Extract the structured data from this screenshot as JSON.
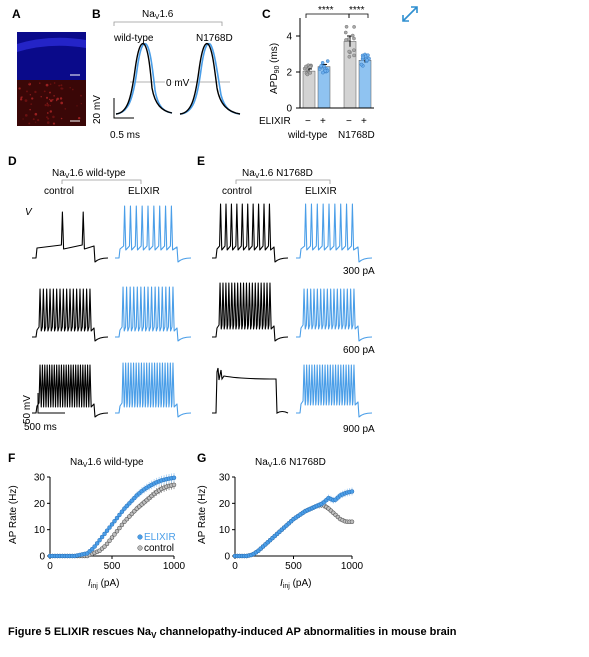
{
  "colors": {
    "elixir": "#4a9ee8",
    "control": "#000000",
    "gray_bar": "#d3d3d3",
    "elixir_bar": "#8fc3f1",
    "dapi": "#1a1acc",
    "red": "#7a1515",
    "expand_icon": "#2f8fd0"
  },
  "icons": {
    "expand": "expand-arrows-icon"
  },
  "panel_letters": {
    "a": "A",
    "b": "B",
    "c": "C",
    "d": "D",
    "e": "E",
    "f": "F",
    "g": "G"
  },
  "panel_b": {
    "title_main": "Na",
    "title_sub": "V",
    "title_tail": "1.6",
    "label_wt": "wild-type",
    "label_mut": "N1768D",
    "zero_label": "0 mV",
    "scale_v": "20 mV",
    "scale_t": "0.5 ms"
  },
  "panel_c": {
    "ylabel_main": "APD",
    "ylabel_sub": "90",
    "ylabel_tail": " (ms)",
    "yticks": [
      "0",
      "2",
      "4"
    ],
    "sig1": "****",
    "sig2": "****",
    "elixir_label": "ELIXIR",
    "minus": "−",
    "plus": "+",
    "group_wt": "wild-type",
    "group_mut": "N1768D"
  },
  "panel_d": {
    "title_main": "Na",
    "title_sub": "V",
    "title_tail": "1.6 wild-type",
    "control": "control",
    "elixir": "ELIXIR",
    "v_label": "V",
    "scale_v": "50 mV",
    "scale_t": "500 ms"
  },
  "panel_e": {
    "title_main": "Na",
    "title_sub": "V",
    "title_tail": "1.6 N1768D",
    "control": "control",
    "elixir": "ELIXIR",
    "currents": [
      "300 pA",
      "600 pA",
      "900 pA"
    ]
  },
  "panel_f": {
    "title_main": "Na",
    "title_sub": "V",
    "title_tail": "1.6 wild-type",
    "ylabel": "AP Rate (Hz)",
    "xlabel_main": "I",
    "xlabel_sub": "inj",
    "xlabel_tail": " (pA)",
    "legend": [
      "ELIXIR",
      "control"
    ]
  },
  "panel_g": {
    "title_main": "Na",
    "title_sub": "V",
    "title_tail": "1.6 N1768D",
    "ylabel": "AP Rate (Hz)",
    "xlabel_main": "I",
    "xlabel_sub": "inj",
    "xlabel_tail": " (pA)"
  },
  "caption": {
    "prefix": "Figure 5  ELIXIR rescues Na",
    "sub": "V",
    "suffix": " channelopathy-induced AP abnormalities in mouse brain"
  },
  "chart_data": [
    {
      "panel": "C",
      "type": "bar",
      "categories": [
        "wild-type −",
        "wild-type +",
        "N1768D −",
        "N1768D +"
      ],
      "values": [
        2.05,
        2.3,
        3.7,
        2.65
      ],
      "ylabel": "APD90 (ms)",
      "ylim": [
        0,
        5
      ]
    },
    {
      "panel": "F",
      "type": "scatter",
      "title": "NaV1.6 wild-type",
      "xlabel": "Iinj (pA)",
      "ylabel": "AP Rate (Hz)",
      "xlim": [
        0,
        1000
      ],
      "ylim": [
        0,
        30
      ],
      "x": [
        0,
        100,
        200,
        300,
        350,
        400,
        450,
        500,
        550,
        600,
        650,
        700,
        750,
        800,
        850,
        900,
        950,
        1000
      ],
      "series": [
        {
          "name": "ELIXIR",
          "values": [
            0,
            0,
            0,
            1,
            3,
            6,
            9,
            12,
            15,
            18,
            20.5,
            23,
            25,
            26.5,
            27.8,
            28.7,
            29.3,
            29.7
          ]
        },
        {
          "name": "control",
          "values": [
            0,
            0,
            0,
            0,
            1,
            2,
            4,
            7,
            10,
            13,
            15.5,
            18,
            20,
            22,
            24,
            25.5,
            26.5,
            27
          ]
        }
      ]
    },
    {
      "panel": "G",
      "type": "scatter",
      "title": "NaV1.6 N1768D",
      "xlabel": "Iinj (pA)",
      "ylabel": "AP Rate (Hz)",
      "xlim": [
        0,
        1000
      ],
      "ylim": [
        0,
        30
      ],
      "x": [
        0,
        100,
        150,
        200,
        250,
        300,
        350,
        400,
        450,
        500,
        550,
        600,
        650,
        700,
        750,
        800,
        850,
        900,
        950,
        1000
      ],
      "series": [
        {
          "name": "ELIXIR",
          "values": [
            0,
            0,
            0.5,
            2,
            4,
            6,
            8,
            10,
            12,
            14,
            15.5,
            17,
            18,
            19,
            20,
            22,
            21,
            23,
            24,
            24.5
          ]
        },
        {
          "name": "control",
          "values": [
            0,
            0,
            0.5,
            2,
            4,
            6,
            8,
            10,
            12,
            14,
            15.5,
            17,
            18,
            19,
            19.5,
            18,
            16,
            14,
            13,
            13
          ]
        }
      ]
    }
  ]
}
